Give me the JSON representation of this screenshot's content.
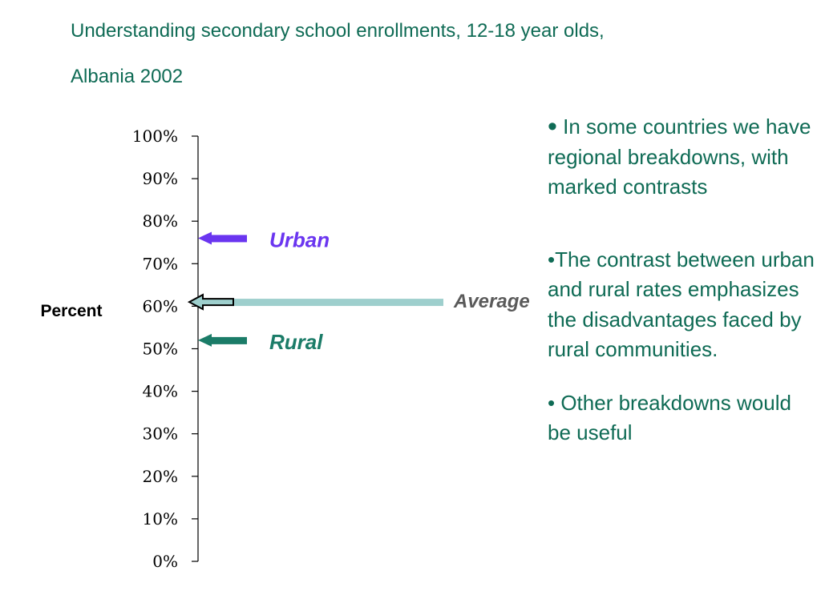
{
  "title": {
    "line1": "Understanding secondary school enrollments, 12-18 year olds,",
    "line2": "Albania 2002"
  },
  "chart_data": {
    "type": "arrow-markers",
    "ylabel": "Percent",
    "ylim": [
      0,
      100
    ],
    "yticks": [
      "0%",
      "10%",
      "20%",
      "30%",
      "40%",
      "50%",
      "60%",
      "70%",
      "80%",
      "90%",
      "100%"
    ],
    "markers": [
      {
        "name": "Urban",
        "value": 76,
        "color": "#6a35f0"
      },
      {
        "name": "Average",
        "value": 61,
        "color": "#9ecfcd"
      },
      {
        "name": "Rural",
        "value": 52,
        "color": "#1b7c68"
      }
    ]
  },
  "bullets": [
    {
      "dot": "•",
      "text": " In some countries we have regional breakdowns, with marked contrasts"
    },
    {
      "dot": "",
      "text": "•The contrast between urban and rural rates emphasizes the disadvantages faced by rural communities."
    },
    {
      "dot": "",
      "text": "• Other breakdowns would be useful"
    }
  ],
  "colors": {
    "title": "#0f6b55",
    "text": "#0f6b55"
  }
}
